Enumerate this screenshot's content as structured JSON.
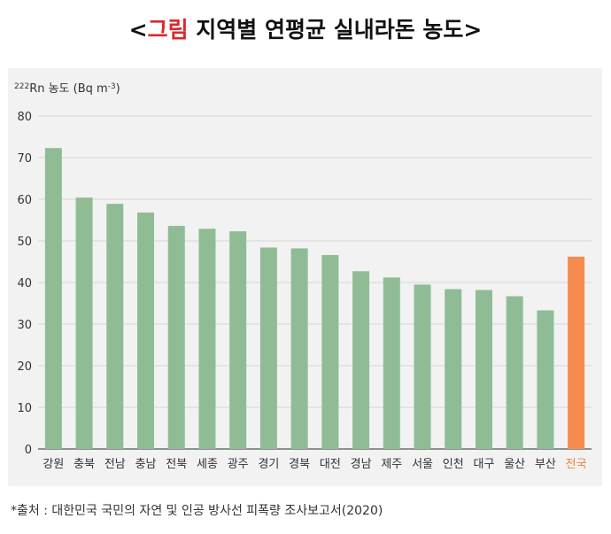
{
  "title": {
    "open": "<",
    "accent": "그림",
    "rest": " 지역별 연평균 실내라돈 농도",
    "close": ">"
  },
  "colors": {
    "accent": "#e0262b",
    "bar": "#8fbc94",
    "highlight_bar": "#f78b4f",
    "highlight_label": "#f0823a",
    "panel_bg": "#f2f2f2"
  },
  "chart_data": {
    "type": "bar",
    "ylabel": {
      "superscript": "222",
      "text": "Rn 농도 (Bq m",
      "unit_superscript": "-3",
      "close": ")"
    },
    "ylim": [
      0,
      80
    ],
    "yticks": [
      "0",
      "10",
      "20",
      "30",
      "40",
      "50",
      "60",
      "70",
      "80"
    ],
    "grid": true,
    "categories": [
      "강원",
      "충북",
      "전남",
      "충남",
      "전북",
      "세종",
      "광주",
      "경기",
      "경북",
      "대전",
      "경남",
      "제주",
      "서울",
      "인천",
      "대구",
      "울산",
      "부산",
      "전국"
    ],
    "values": [
      72.3,
      60.4,
      58.9,
      56.8,
      53.6,
      52.9,
      52.3,
      48.4,
      48.2,
      46.6,
      42.7,
      41.2,
      39.5,
      38.4,
      38.2,
      36.7,
      33.3,
      46.2
    ],
    "highlight_category": "전국"
  },
  "source": "*출처 : 대한민국 국민의 자연 및 인공 방사선 피폭량 조사보고서(2020)"
}
